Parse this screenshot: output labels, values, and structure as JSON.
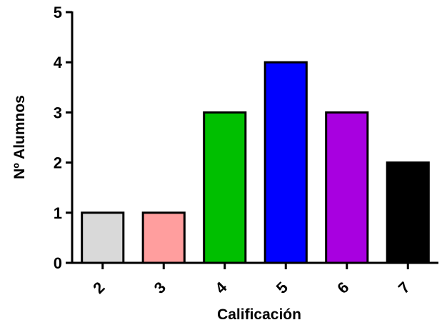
{
  "chart_data": {
    "type": "bar",
    "categories": [
      "2",
      "3",
      "4",
      "5",
      "6",
      "7"
    ],
    "values": [
      1,
      1,
      3,
      4,
      3,
      2
    ],
    "colors": [
      "#d9d9d9",
      "#ff9e9e",
      "#00bf00",
      "#0000ff",
      "#a800e0",
      "#000000"
    ],
    "xlabel": "Calificación",
    "ylabel": "Nº Alumnos",
    "ylim": [
      0,
      5
    ],
    "yticks": [
      "0",
      "1",
      "2",
      "3",
      "4",
      "5"
    ],
    "grid": false,
    "legend": "none"
  }
}
